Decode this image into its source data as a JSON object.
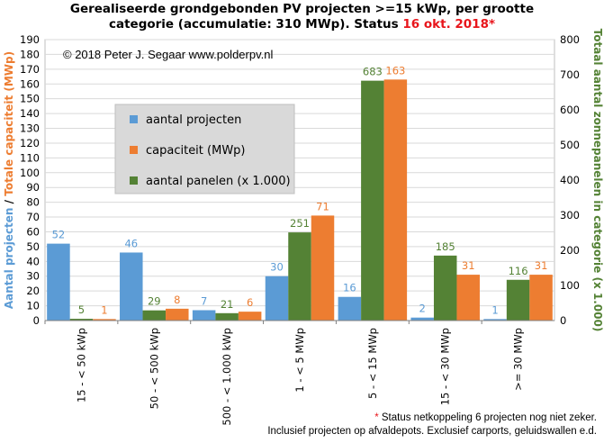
{
  "title": {
    "line1": "Gerealiseerde grondgebonden PV projecten >=15 kWp, per grootte",
    "line2_main": "categorie (accumulatie: 310 MWp). Status ",
    "line2_highlight": "16 okt. 2018*"
  },
  "colors": {
    "projects": "#5b9bd5",
    "capacity": "#ed7d31",
    "panels": "#548235",
    "grid": "#d9d9d9",
    "axis_text": "#000000",
    "highlight": "#e8151b"
  },
  "chart_data": {
    "type": "bar",
    "copyright": "© 2018 Peter J. Segaar  www.polderpv.nl",
    "categories": [
      "15 - <  50 kWp",
      "50 - <  500 kWp",
      "500 - < 1.000 kWp",
      "1 - < 5 MWp",
      "5 - < 15 MWp",
      "15 - < 30 MWp",
      ">= 30 MWp"
    ],
    "series": [
      {
        "name": "aantal projecten",
        "axis": "left",
        "values": [
          52,
          46,
          7,
          30,
          16,
          2,
          1
        ]
      },
      {
        "name": "aantal panelen (x 1.000)",
        "axis": "right",
        "values": [
          5,
          29,
          21,
          251,
          683,
          185,
          116
        ]
      },
      {
        "name": "capaciteit (MWp)",
        "axis": "left",
        "values": [
          1,
          8,
          6,
          71,
          163,
          31,
          31
        ]
      }
    ],
    "legend_order": [
      "aantal projecten",
      "capaciteit (MWp)",
      "aantal panelen (x 1.000)"
    ],
    "ylabel_left_part1": "Aantal projecten",
    "ylabel_left_sep": " / ",
    "ylabel_left_part2": "Totale capaciteit (MWp)",
    "ylabel_right": "Totaal aantal zonnepanelen in categorie (x 1.000)",
    "ylim_left": [
      0,
      190
    ],
    "ylim_right": [
      0,
      800
    ],
    "yticks_left": [
      0,
      10,
      20,
      30,
      40,
      50,
      60,
      70,
      80,
      90,
      100,
      110,
      120,
      130,
      140,
      150,
      160,
      170,
      180,
      190
    ],
    "yticks_right": [
      0,
      100,
      200,
      300,
      400,
      500,
      600,
      700,
      800
    ],
    "grid": true,
    "legend_position": "upper-left"
  },
  "footer": {
    "star": "*",
    "line1": " Status netkoppeling 6 projecten nog niet zeker.",
    "line2": "Inclusief projecten op afvaldepots. Exclusief carports, geluidswallen e.d."
  }
}
